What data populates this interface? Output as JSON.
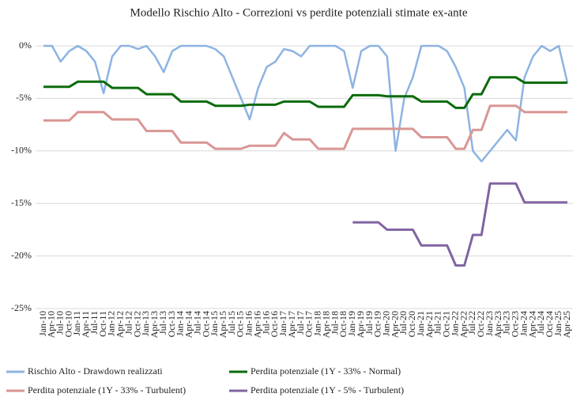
{
  "chart_data": {
    "type": "line",
    "title": "Modello Rischio Alto - Correzioni vs perdite potenziali stimate ex-ante",
    "categories": [
      "Jan-10",
      "Apr-10",
      "Jul-10",
      "Oct-10",
      "Jan-11",
      "Apr-11",
      "Jul-11",
      "Oct-11",
      "Jan-12",
      "Apr-12",
      "Jul-12",
      "Oct-12",
      "Jan-13",
      "Apr-13",
      "Jul-13",
      "Oct-13",
      "Jan-14",
      "Apr-14",
      "Jul-14",
      "Oct-14",
      "Jan-15",
      "Apr-15",
      "Jul-15",
      "Oct-15",
      "Jan-16",
      "Apr-16",
      "Jul-16",
      "Oct-16",
      "Jan-17",
      "Apr-17",
      "Jul-17",
      "Oct-17",
      "Jan-18",
      "Apr-18",
      "Jul-18",
      "Oct-18",
      "Jan-19",
      "Apr-19",
      "Jul-19",
      "Oct-19",
      "Jan-20",
      "Apr-20",
      "Jul-20",
      "Oct-20",
      "Jan-21",
      "Apr-21",
      "Jul-21",
      "Oct-21",
      "Jan-22",
      "Apr-22",
      "Jul-22",
      "Oct-22",
      "Jan-23",
      "Apr-23",
      "Jul-23",
      "Oct-23",
      "Jan-24",
      "Apr-24",
      "Jul-24",
      "Oct-24",
      "Jan-25",
      "Apr-25"
    ],
    "series": [
      {
        "name": "Rischio Alto - Drawdown realizzati",
        "color": "#8db3e2",
        "values": [
          0,
          0,
          -1.5,
          -0.5,
          0,
          -0.5,
          -1.5,
          -4.5,
          -1,
          0,
          0,
          -0.3,
          0,
          -1,
          -2.5,
          -0.5,
          0,
          0,
          0,
          0,
          -0.3,
          -1,
          -3,
          -5,
          -7,
          -4,
          -2,
          -1.5,
          -0.3,
          -0.5,
          -1,
          0,
          0,
          0,
          0,
          -0.5,
          -4,
          -0.5,
          0,
          0,
          -1,
          -10,
          -5,
          -3,
          0,
          0,
          0,
          -0.5,
          -2,
          -4,
          -10,
          -11,
          -10,
          -9,
          -8,
          -9,
          -3,
          -1,
          0,
          -0.5,
          0,
          -3.5
        ]
      },
      {
        "name": "Perdita potenziale (1Y - 33% - Normal)",
        "color": "#0a6b0a",
        "values": [
          -3.9,
          -3.9,
          -3.9,
          -3.9,
          -3.4,
          -3.4,
          -3.4,
          -3.4,
          -4,
          -4,
          -4,
          -4,
          -4.6,
          -4.6,
          -4.6,
          -4.6,
          -5.3,
          -5.3,
          -5.3,
          -5.3,
          -5.7,
          -5.7,
          -5.7,
          -5.7,
          -5.6,
          -5.6,
          -5.6,
          -5.6,
          -5.3,
          -5.3,
          -5.3,
          -5.3,
          -5.8,
          -5.8,
          -5.8,
          -5.8,
          -4.7,
          -4.7,
          -4.7,
          -4.7,
          -4.8,
          -4.8,
          -4.8,
          -4.8,
          -5.3,
          -5.3,
          -5.3,
          -5.3,
          -5.9,
          -5.9,
          -4.6,
          -4.6,
          -3,
          -3,
          -3,
          -3,
          -3.5,
          -3.5,
          -3.5,
          -3.5,
          -3.5,
          -3.5
        ]
      },
      {
        "name": "Perdita potenziale (1Y - 33% - Turbulent)",
        "color": "#d99694",
        "values": [
          -7.1,
          -7.1,
          -7.1,
          -7.1,
          -6.3,
          -6.3,
          -6.3,
          -6.3,
          -7,
          -7,
          -7,
          -7,
          -8.1,
          -8.1,
          -8.1,
          -8.1,
          -9.2,
          -9.2,
          -9.2,
          -9.2,
          -9.8,
          -9.8,
          -9.8,
          -9.8,
          -9.5,
          -9.5,
          -9.5,
          -9.5,
          -8.3,
          -8.9,
          -8.9,
          -8.9,
          -9.8,
          -9.8,
          -9.8,
          -9.8,
          -7.9,
          -7.9,
          -7.9,
          -7.9,
          -7.9,
          -7.9,
          -7.9,
          -7.9,
          -8.7,
          -8.7,
          -8.7,
          -8.7,
          -9.8,
          -9.8,
          -8,
          -8,
          -5.7,
          -5.7,
          -5.7,
          -5.7,
          -6.3,
          -6.3,
          -6.3,
          -6.3,
          -6.3,
          -6.3
        ]
      },
      {
        "name": "Perdita potenziale (1Y - 5% - Turbulent)",
        "color": "#8064a2",
        "values": [
          null,
          null,
          null,
          null,
          null,
          null,
          null,
          null,
          null,
          null,
          null,
          null,
          null,
          null,
          null,
          null,
          null,
          null,
          null,
          null,
          null,
          null,
          null,
          null,
          null,
          null,
          null,
          null,
          null,
          null,
          null,
          null,
          null,
          null,
          null,
          null,
          -16.8,
          -16.8,
          -16.8,
          -16.8,
          -17.5,
          -17.5,
          -17.5,
          -17.5,
          -19,
          -19,
          -19,
          -19,
          -20.9,
          -20.9,
          -18,
          -18,
          -13.1,
          -13.1,
          -13.1,
          -13.1,
          -14.9,
          -14.9,
          -14.9,
          -14.9,
          -14.9,
          -14.9
        ]
      }
    ],
    "ylim": [
      -25,
      0
    ],
    "yticks": [
      {
        "value": 0,
        "label": "0%"
      },
      {
        "value": -5,
        "label": "-5%"
      },
      {
        "value": -10,
        "label": "-10%"
      },
      {
        "value": -15,
        "label": "-15%"
      },
      {
        "value": -20,
        "label": "-20%"
      },
      {
        "value": -25,
        "label": "-25%"
      }
    ],
    "grid": true
  }
}
